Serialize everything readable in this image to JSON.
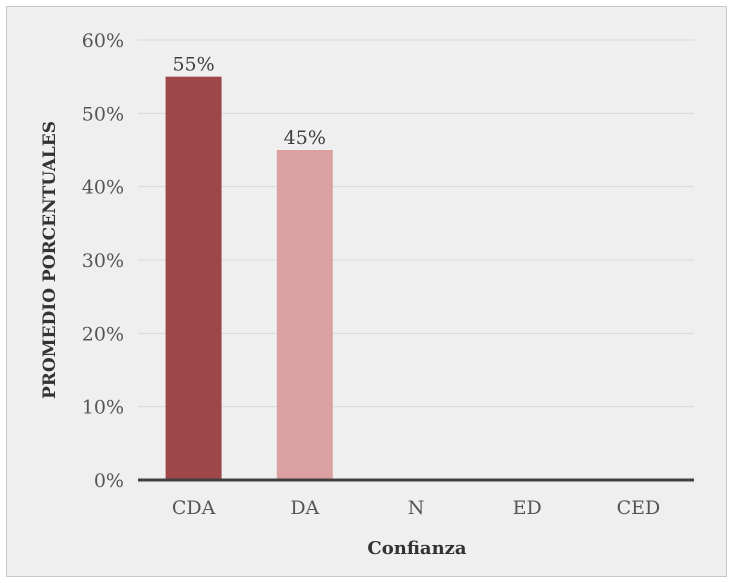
{
  "chart_data": {
    "type": "bar",
    "title": "",
    "xlabel": "Confianza",
    "ylabel": "PROMEDIO PORCENTUALES",
    "categories": [
      "CDA",
      "DA",
      "N",
      "ED",
      "CED"
    ],
    "values": [
      55,
      45,
      0,
      0,
      0
    ],
    "data_labels": [
      "55%",
      "45%",
      "",
      "",
      ""
    ],
    "bar_colors": [
      "#9e4648",
      "#dba0a0",
      "#dba0a0",
      "#dba0a0",
      "#dba0a0"
    ],
    "ylim": [
      0,
      60
    ],
    "yticks": [
      0,
      10,
      20,
      30,
      40,
      50,
      60
    ],
    "ytick_labels": [
      "0%",
      "10%",
      "20%",
      "30%",
      "40%",
      "50%",
      "60%"
    ],
    "grid": true,
    "legend": "none"
  },
  "colors": {
    "background": "#efefef",
    "gridline": "#d9d9d9",
    "axis": "#404040"
  }
}
